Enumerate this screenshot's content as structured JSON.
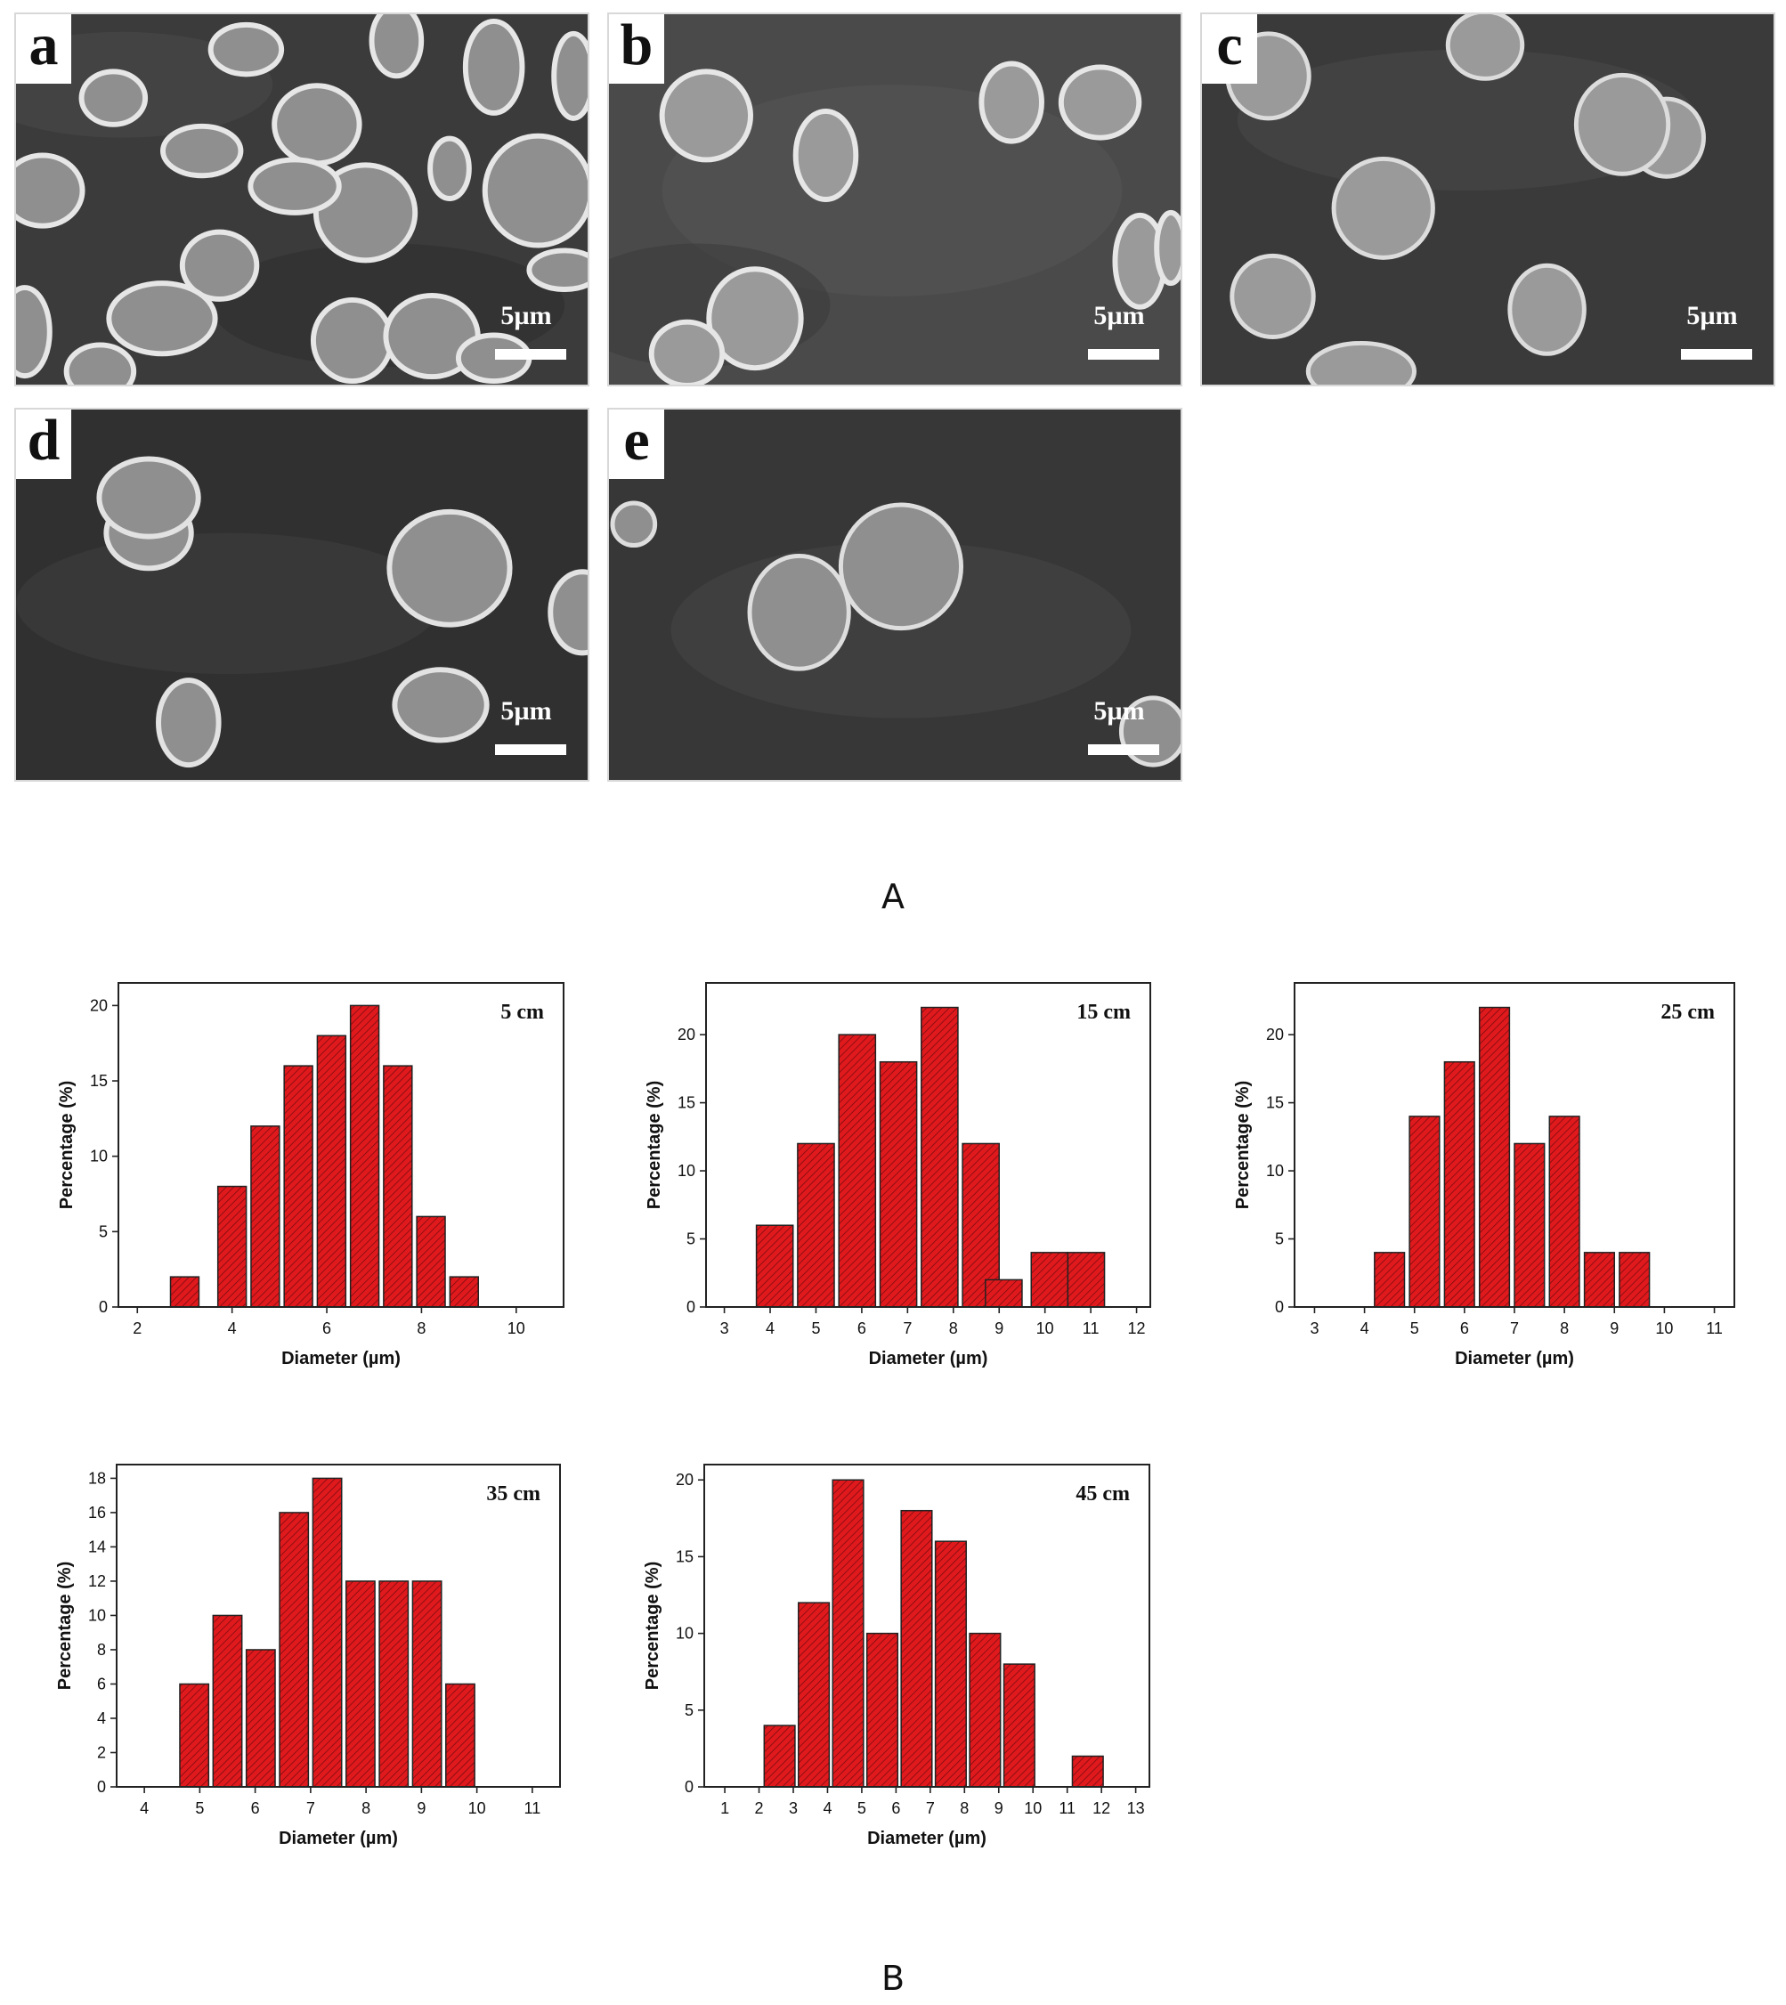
{
  "colors": {
    "bar_fill": "#e0191d",
    "bar_hatch": "#7a0d0f",
    "axis": "#222222",
    "sem_background": "#3c3c3c",
    "cell_outline": "#e8e8e8"
  },
  "panel_a": {
    "label": "A",
    "images": [
      {
        "letter": "a",
        "scale_label": "5µm"
      },
      {
        "letter": "b",
        "scale_label": "5µm"
      },
      {
        "letter": "c",
        "scale_label": "5µm"
      },
      {
        "letter": "d",
        "scale_label": "5µm"
      },
      {
        "letter": "e",
        "scale_label": "5µm"
      }
    ]
  },
  "panel_b": {
    "label": "B"
  },
  "chart_data": [
    {
      "type": "bar",
      "annotation": "5 cm",
      "xlabel": "Diameter (µm)",
      "ylabel": "Percentage (%)",
      "xlim": [
        1.6,
        11
      ],
      "xticks": [
        2,
        4,
        6,
        8,
        10
      ],
      "ylim": [
        0,
        21.5
      ],
      "yticks": [
        0,
        5,
        10,
        15,
        20
      ],
      "bar_width": 0.6,
      "x": [
        3,
        4,
        4.7,
        5.4,
        6.1,
        6.8,
        7.5,
        8.2,
        8.9
      ],
      "values": [
        2,
        8,
        12,
        16,
        18,
        20,
        16,
        6,
        2
      ]
    },
    {
      "type": "bar",
      "annotation": "15 cm",
      "xlabel": "Diameter (µm)",
      "ylabel": "Percentage (%)",
      "xlim": [
        2.6,
        12.3
      ],
      "xticks": [
        3,
        4,
        5,
        6,
        7,
        8,
        9,
        10,
        11,
        12
      ],
      "ylim": [
        0,
        23.8
      ],
      "yticks": [
        0,
        5,
        10,
        15,
        20
      ],
      "bar_width": 0.8,
      "x": [
        4.1,
        5,
        5.9,
        6.8,
        7.7,
        8.6,
        9.1,
        10.1,
        10.9
      ],
      "values": [
        6,
        12,
        20,
        18,
        22,
        12,
        2,
        4,
        4
      ]
    },
    {
      "type": "bar",
      "annotation": "25 cm",
      "xlabel": "Diameter (µm)",
      "ylabel": "Percentage (%)",
      "xlim": [
        2.6,
        11.4
      ],
      "xticks": [
        3,
        4,
        5,
        6,
        7,
        8,
        9,
        10,
        11
      ],
      "ylim": [
        0,
        23.8
      ],
      "yticks": [
        0,
        5,
        10,
        15,
        20
      ],
      "bar_width": 0.6,
      "x": [
        4.5,
        5.2,
        5.9,
        6.6,
        7.3,
        8,
        8.7,
        9.4
      ],
      "values": [
        4,
        14,
        18,
        22,
        12,
        14,
        4,
        4
      ]
    },
    {
      "type": "bar",
      "annotation": "35 cm",
      "xlabel": "Diameter (µm)",
      "ylabel": "Percentage (%)",
      "xlim": [
        3.5,
        11.5
      ],
      "xticks": [
        4,
        5,
        6,
        7,
        8,
        9,
        10,
        11
      ],
      "ylim": [
        0,
        18.8
      ],
      "yticks": [
        0,
        2,
        4,
        6,
        8,
        10,
        12,
        14,
        16,
        18
      ],
      "bar_width": 0.52,
      "x": [
        4.9,
        5.5,
        6.1,
        6.7,
        7.3,
        7.9,
        8.5,
        9.1,
        9.7
      ],
      "values": [
        6,
        10,
        8,
        16,
        18,
        12,
        12,
        12,
        6
      ]
    },
    {
      "type": "bar",
      "annotation": "45 cm",
      "xlabel": "Diameter (µm)",
      "ylabel": "Percentage (%)",
      "xlim": [
        0.4,
        13.4
      ],
      "xticks": [
        1,
        2,
        3,
        4,
        5,
        6,
        7,
        8,
        9,
        10,
        11,
        12,
        13
      ],
      "ylim": [
        0,
        21
      ],
      "yticks": [
        0,
        5,
        10,
        15,
        20
      ],
      "bar_width": 0.9,
      "x": [
        2.6,
        3.6,
        4.6,
        5.6,
        6.6,
        7.6,
        8.6,
        9.6,
        11.6
      ],
      "values": [
        4,
        12,
        20,
        10,
        18,
        16,
        10,
        8,
        2
      ]
    }
  ]
}
